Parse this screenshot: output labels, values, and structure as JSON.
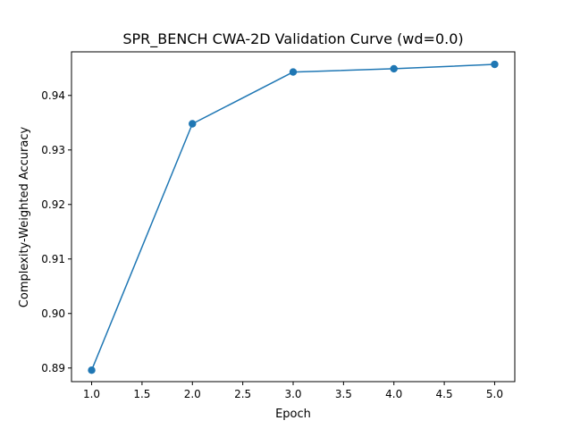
{
  "chart_data": {
    "type": "line",
    "title": "SPR_BENCH CWA-2D Validation Curve (wd=0.0)",
    "xlabel": "Epoch",
    "ylabel": "Complexity-Weighted Accuracy",
    "xlim": [
      0.8,
      5.2
    ],
    "ylim": [
      0.8875,
      0.948
    ],
    "x_ticks": [
      1.0,
      1.5,
      2.0,
      2.5,
      3.0,
      3.5,
      4.0,
      4.5,
      5.0
    ],
    "x_tick_labels": [
      "1.0",
      "1.5",
      "2.0",
      "2.5",
      "3.0",
      "3.5",
      "4.0",
      "4.5",
      "5.0"
    ],
    "y_ticks": [
      0.89,
      0.9,
      0.91,
      0.92,
      0.93,
      0.94
    ],
    "y_tick_labels": [
      "0.89",
      "0.90",
      "0.91",
      "0.92",
      "0.93",
      "0.94"
    ],
    "grid": false,
    "series": [
      {
        "color": "#1f77b4",
        "marker": "circle",
        "x": [
          1,
          2,
          3,
          4,
          5
        ],
        "y": [
          0.8896,
          0.9348,
          0.9443,
          0.9449,
          0.9457
        ]
      }
    ]
  }
}
